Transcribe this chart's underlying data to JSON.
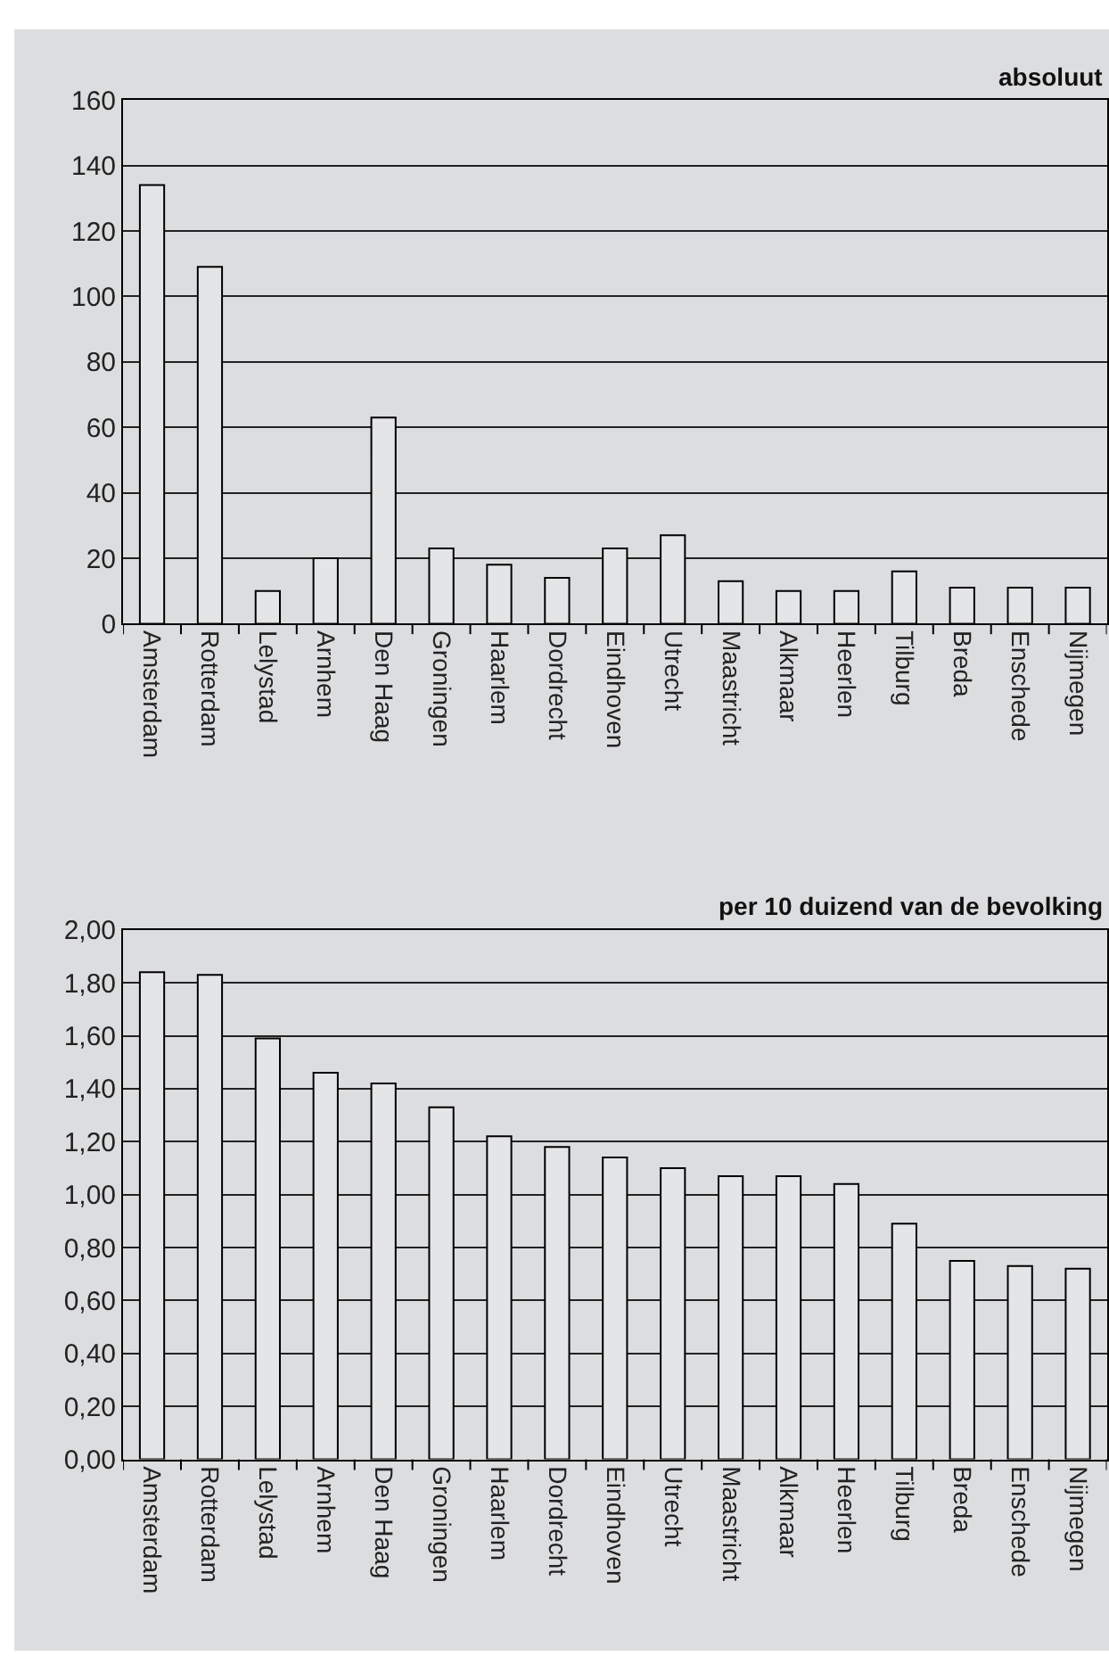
{
  "chart_data": [
    {
      "type": "bar",
      "title": "absoluut",
      "categories": [
        "Amsterdam",
        "Rotterdam",
        "Lelystad",
        "Arnhem",
        "Den Haag",
        "Groningen",
        "Haarlem",
        "Dordrecht",
        "Eindhoven",
        "Utrecht",
        "Maastricht",
        "Alkmaar",
        "Heerlen",
        "Tilburg",
        "Breda",
        "Enschede",
        "Nijmegen"
      ],
      "values": [
        134,
        109,
        10,
        20,
        63,
        23,
        18,
        14,
        23,
        27,
        13,
        10,
        10,
        16,
        11,
        11,
        11
      ],
      "color": "#e4e5e7",
      "ylim": [
        0,
        160
      ],
      "yticks": [
        0,
        20,
        40,
        60,
        80,
        100,
        120,
        140,
        160
      ],
      "grid": "y"
    },
    {
      "type": "bar",
      "title": "per 10 duizend van de bevolking",
      "categories": [
        "Amsterdam",
        "Rotterdam",
        "Lelystad",
        "Arnhem",
        "Den Haag",
        "Groningen",
        "Haarlem",
        "Dordrecht",
        "Eindhoven",
        "Utrecht",
        "Maastricht",
        "Alkmaar",
        "Heerlen",
        "Tilburg",
        "Breda",
        "Enschede",
        "Nijmegen"
      ],
      "values": [
        1.84,
        1.83,
        1.59,
        1.46,
        1.42,
        1.33,
        1.22,
        1.18,
        1.14,
        1.1,
        1.07,
        1.07,
        1.04,
        0.89,
        0.75,
        0.73,
        0.72
      ],
      "color": "#e4e5e7",
      "ylim": [
        0,
        2
      ],
      "grid": "y",
      "yticks": [
        {
          "value": 0,
          "label": "0,00"
        },
        {
          "value": 0.2,
          "label": "0,20"
        },
        {
          "value": 0.4,
          "label": "0,40"
        },
        {
          "value": 0.6,
          "label": "0,60"
        },
        {
          "value": 0.8,
          "label": "0,80"
        },
        {
          "value": 1,
          "label": "1,00"
        },
        {
          "value": 1.2,
          "label": "1,20"
        },
        {
          "value": 1.4,
          "label": "1,40"
        },
        {
          "value": 1.6,
          "label": "1,60"
        },
        {
          "value": 1.8,
          "label": "1,80"
        },
        {
          "value": 2,
          "label": "2,00"
        }
      ]
    }
  ]
}
